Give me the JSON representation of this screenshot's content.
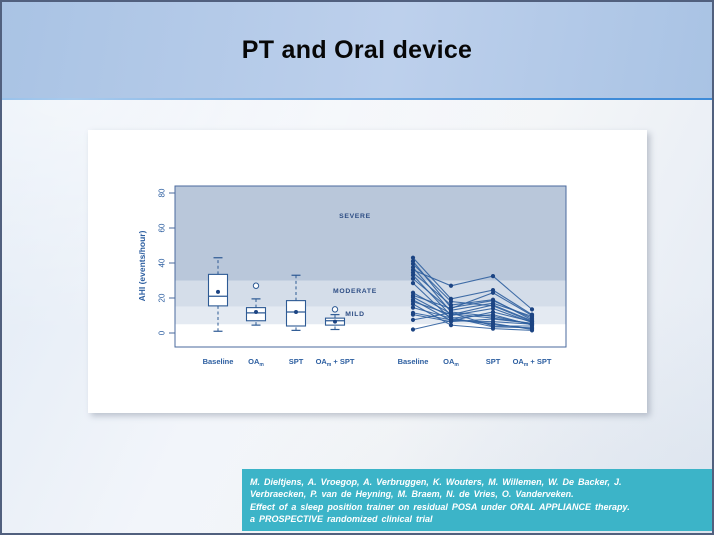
{
  "slide": {
    "title": "PT and Oral device",
    "citation": {
      "lines": [
        "M. Dieltjens, A. Vroegop, A. Verbruggen, K. Wouters, M. Willemen, W. De Backer, J.",
        "Verbraecken, P. van de Heyning, M. Braem, N. de Vries, O. Vanderveken.",
        "Effect of a sleep position trainer on residual POSA under ORAL APPLIANCE therapy.",
        "a PROSPECTIVE randomized clinical trial"
      ]
    },
    "colors": {
      "header_top": "#a9c3e4",
      "header_bottom": "#bdd0ec",
      "accent": "#3e8bd8",
      "body_a": "#dfe9f5",
      "body_b": "#e2eaf4",
      "border": "#51607e",
      "teal": "#3cb4c8",
      "citation_text": "#ffffff"
    }
  },
  "chart_data": {
    "type": "box",
    "subtype": "grouped boxplots (left) + paired individual-patient lines (right)",
    "ylabel": "AHI (events/hour)",
    "yticks": [
      0,
      20,
      40,
      60,
      80
    ],
    "ylim": [
      -8,
      84
    ],
    "grid": false,
    "categories": [
      "Baseline",
      "OA_m",
      "SPT",
      "OA_m + SPT"
    ],
    "zones": [
      {
        "label": "SEVERE",
        "from": 30,
        "to": 84,
        "color": "#b9c7da"
      },
      {
        "label": "MODERATE",
        "from": 15,
        "to": 30,
        "color": "#d4dde9"
      },
      {
        "label": "MILD",
        "from": 5,
        "to": 15,
        "color": "#e4eaf2"
      }
    ],
    "boxplots": [
      {
        "category": "Baseline",
        "whisker_low": 1,
        "q1": 15.5,
        "median": 21,
        "mean": 23.5,
        "q3": 33.5,
        "whisker_high": 43,
        "outliers": []
      },
      {
        "category": "OA_m",
        "whisker_low": 4.5,
        "q1": 7,
        "median": 11.5,
        "mean": 12,
        "q3": 14.5,
        "whisker_high": 19.5,
        "outliers": [
          27
        ]
      },
      {
        "category": "SPT",
        "whisker_low": 1.5,
        "q1": 4,
        "median": 12,
        "mean": 12,
        "q3": 18.5,
        "whisker_high": 33,
        "outliers": []
      },
      {
        "category": "OA_m + SPT",
        "whisker_low": 2,
        "q1": 4.5,
        "median": 7,
        "mean": 6.5,
        "q3": 8.5,
        "whisker_high": 10.5,
        "outliers": [
          13.5
        ]
      }
    ],
    "patients": [
      [
        43,
        19.5,
        24.5,
        10.5
      ],
      [
        41,
        14.5,
        18.5,
        8.5
      ],
      [
        39.5,
        18,
        15.5,
        6.5
      ],
      [
        37.5,
        12,
        9.5,
        5
      ],
      [
        36,
        27,
        32.5,
        13.5
      ],
      [
        34.5,
        16,
        19,
        7.5
      ],
      [
        33,
        10,
        14,
        6
      ],
      [
        31,
        13,
        17,
        9.5
      ],
      [
        28.5,
        8,
        5,
        2.5
      ],
      [
        23,
        11,
        8.5,
        5.5
      ],
      [
        21.5,
        14,
        23,
        10
      ],
      [
        20.5,
        9,
        3.5,
        3
      ],
      [
        19,
        7,
        12,
        6.5
      ],
      [
        18,
        10.5,
        16,
        7
      ],
      [
        16.5,
        4.5,
        2.5,
        1.5
      ],
      [
        14.5,
        8.5,
        10.5,
        4.5
      ],
      [
        11.5,
        7.5,
        5.5,
        2
      ],
      [
        10.5,
        6.5,
        8,
        5.5
      ],
      [
        7.5,
        11.5,
        4,
        4
      ],
      [
        2,
        7,
        6.5,
        5
      ]
    ],
    "colors": {
      "frame": "#4a6a9d",
      "axis_text": "#2c5ea0",
      "zone_text": "#2d4d84",
      "box": "#2d5a94",
      "dot": "#1c4483",
      "line": "#2f5f9e"
    }
  }
}
